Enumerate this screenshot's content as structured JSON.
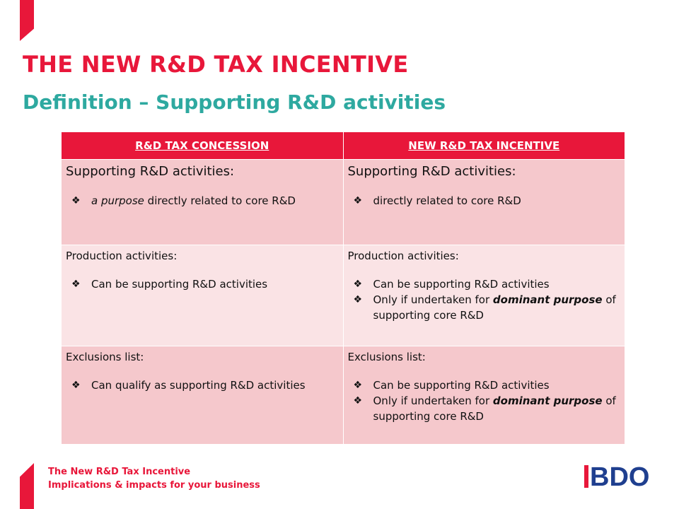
{
  "header": {
    "title": "THE NEW R&D TAX INCENTIVE",
    "subtitle": "Definition – Supporting R&D activities"
  },
  "table": {
    "columns": [
      "R&D TAX CONCESSION",
      "NEW R&D TAX INCENTIVE"
    ],
    "rows": [
      {
        "left": {
          "heading": "Supporting R&D activities:",
          "items": [
            {
              "em": "a purpose",
              "rest": " directly related to core R&D"
            }
          ]
        },
        "right": {
          "heading": "Supporting R&D activities:",
          "items": [
            {
              "em": "",
              "rest": "directly related to core R&D"
            }
          ]
        }
      },
      {
        "left": {
          "heading": "Production activities:",
          "items": [
            {
              "pre": "",
              "em": "",
              "rest": "Can be supporting R&D activities"
            }
          ]
        },
        "right": {
          "heading": "Production activities:",
          "items": [
            {
              "pre": "",
              "em": "",
              "rest": "Can be supporting R&D activities"
            },
            {
              "pre": "Only if undertaken for ",
              "em": "dominant purpose",
              "rest": " of supporting core R&D"
            }
          ]
        }
      },
      {
        "left": {
          "heading": "Exclusions list:",
          "items": [
            {
              "pre": "",
              "em": "",
              "rest": "Can qualify as supporting R&D activities"
            }
          ]
        },
        "right": {
          "heading": "Exclusions list:",
          "items": [
            {
              "pre": "",
              "em": "",
              "rest": "Can be supporting R&D activities"
            },
            {
              "pre": "Only if undertaken for ",
              "em": "dominant purpose",
              "rest": " of supporting core R&D"
            }
          ]
        }
      }
    ],
    "bullet_icon": "diamond-bullet-icon"
  },
  "footer": {
    "line1": "The New R&D Tax Incentive",
    "line2": "Implications & impacts for your business"
  },
  "logo": {
    "text": "BDO",
    "color": "#1f3f8f"
  },
  "colors": {
    "accent": "#e8173a",
    "teal": "#2ea9a0",
    "row_dark": "#f5c8cc",
    "row_light": "#fae3e5"
  }
}
